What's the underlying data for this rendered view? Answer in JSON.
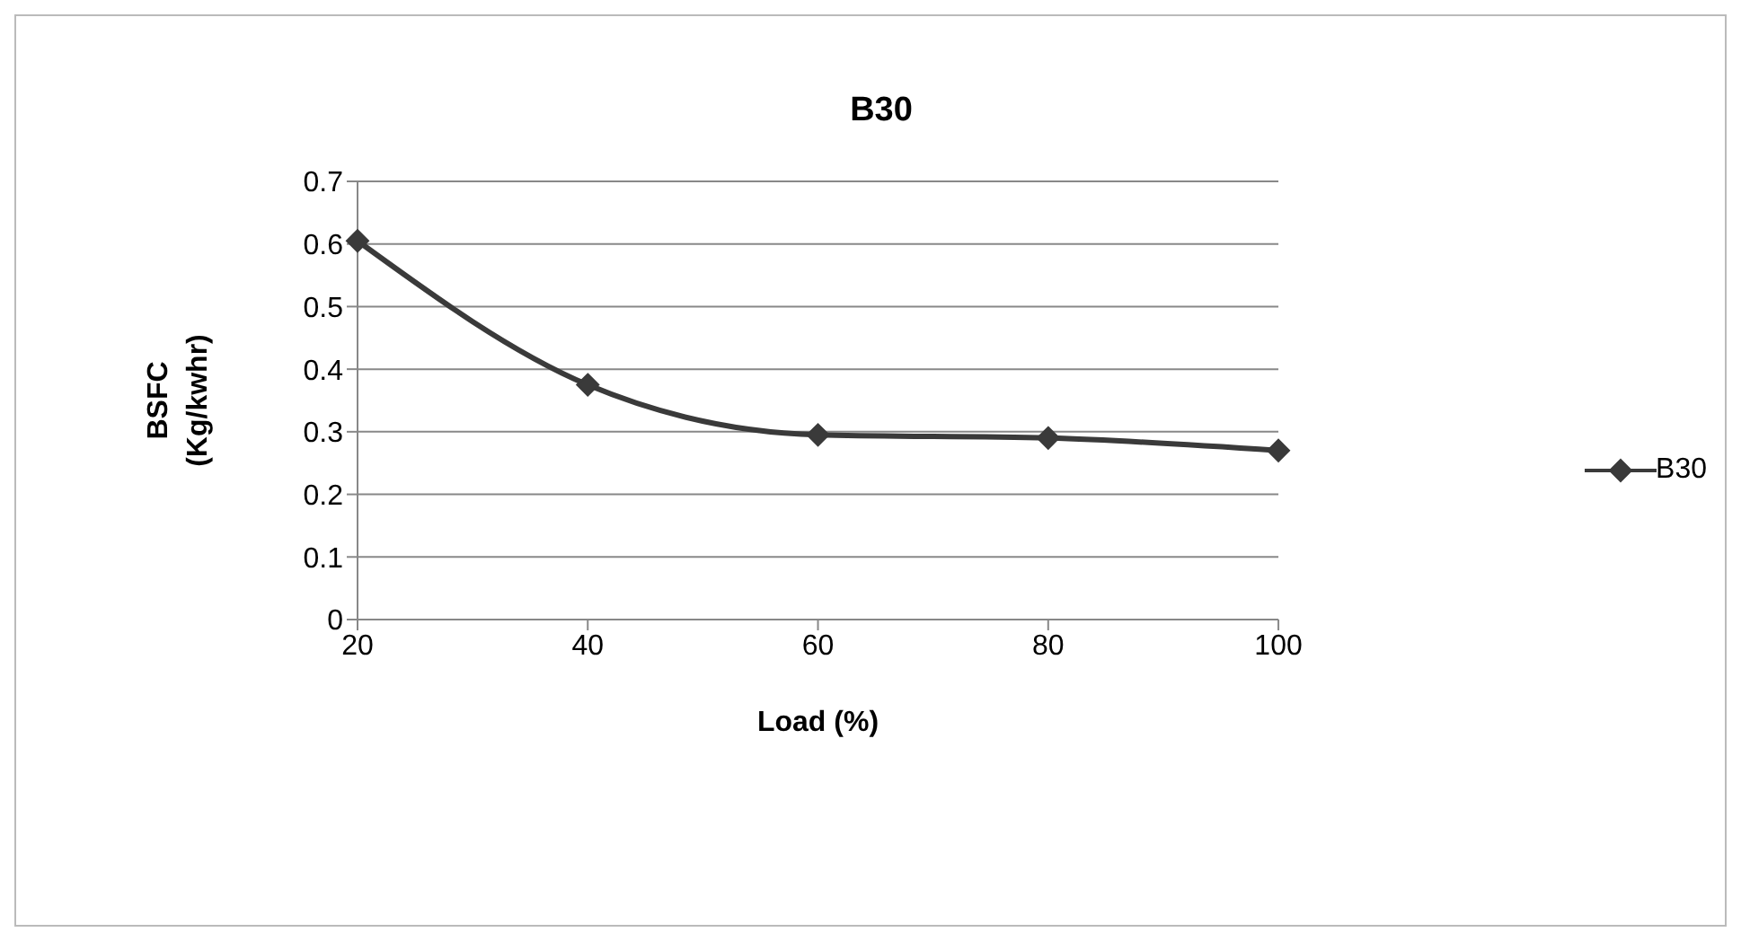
{
  "chart_data": {
    "type": "line",
    "title": "B30",
    "xlabel": "Load (%)",
    "ylabel": "BSFC (Kg/kwhr)",
    "categories": [
      "20",
      "40",
      "60",
      "80",
      "100"
    ],
    "series": [
      {
        "name": "B30",
        "color": "#3a3a3a",
        "values": [
          0.605,
          0.375,
          0.295,
          0.29,
          0.27
        ]
      }
    ],
    "ylim": [
      0,
      0.7
    ],
    "yticks": [
      0,
      0.1,
      0.2,
      0.3,
      0.4,
      0.5,
      0.6,
      0.7
    ],
    "grid": "y",
    "legend": "right",
    "marker": "diamond",
    "line_style": "solid"
  }
}
